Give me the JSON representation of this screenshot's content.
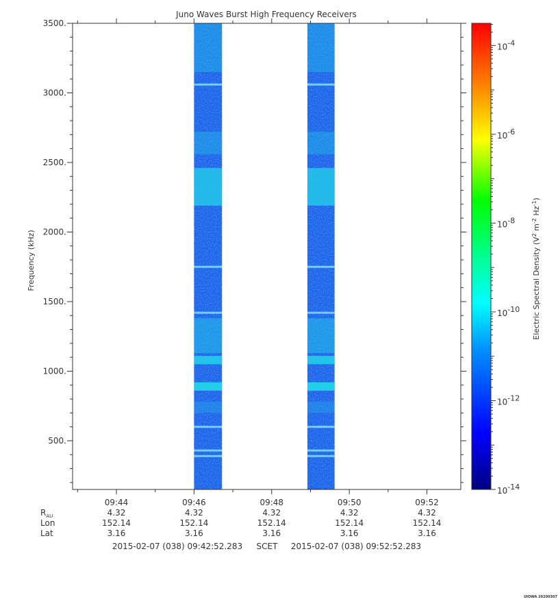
{
  "chart_data": {
    "type": "heatmap",
    "title": "Juno Waves Burst High Frequency Receivers",
    "ylabel": "Frequency (kHz)",
    "ylim": [
      150,
      3500
    ],
    "yticks": [
      "3500.",
      "3000.",
      "2500.",
      "2000.",
      "1500.",
      "1000.",
      "500."
    ],
    "ytick_values": [
      3500,
      3000,
      2500,
      2000,
      1500,
      1000,
      500
    ],
    "xlim": [
      "09:42:52.283",
      "09:52:52.283"
    ],
    "xticks": [
      "09:44",
      "09:46",
      "09:48",
      "09:50",
      "09:52"
    ],
    "xtick_values_min": [
      44,
      46,
      48,
      50,
      52
    ],
    "bursts": [
      {
        "start_min": 46.0,
        "end_min": 46.72
      },
      {
        "start_min": 48.92,
        "end_min": 49.62
      }
    ],
    "colorbar": {
      "label_main": "Electric Spectral Density (V",
      "label_sup1": "2",
      "label_mid": " m",
      "label_sup2": "-2",
      "label_mid2": " Hz",
      "label_sup3": "-1",
      "label_end": ")",
      "scale": "log",
      "range_exp": [
        -14,
        -3.5
      ],
      "ticks": [
        {
          "base": "10",
          "exp": "-4"
        },
        {
          "base": "10",
          "exp": "-6"
        },
        {
          "base": "10",
          "exp": "-8"
        },
        {
          "base": "10",
          "exp": "-10"
        },
        {
          "base": "10",
          "exp": "-12"
        },
        {
          "base": "10",
          "exp": "-14"
        }
      ],
      "tick_exps": [
        -4,
        -6,
        -8,
        -10,
        -12,
        -14
      ]
    },
    "ephemeris": {
      "rows": [
        {
          "label": "R",
          "sub": "AU",
          "values": [
            "4.32",
            "4.32",
            "4.32",
            "4.32",
            "4.32"
          ]
        },
        {
          "label": "Lon",
          "values": [
            "152.14",
            "152.14",
            "152.14",
            "152.14",
            "152.14"
          ]
        },
        {
          "label": "Lat",
          "values": [
            "3.16",
            "3.16",
            "3.16",
            "3.16",
            "3.16"
          ]
        }
      ]
    },
    "time_range": {
      "start": "2015-02-07 (038) 09:42:52.283",
      "mid": "SCET",
      "end": "2015-02-07 (038) 09:52:52.283"
    },
    "stamp": "UIOWA 20200307"
  }
}
